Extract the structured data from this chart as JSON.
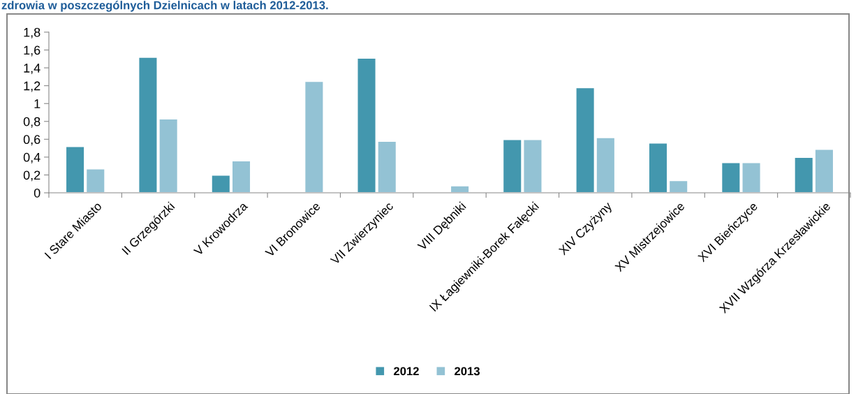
{
  "chart_data": {
    "type": "bar",
    "title": "zdrowia w poszczególnych Dzielnicach w latach 2012-2013.",
    "categories": [
      "I Stare Miasto",
      "II Grzegórzki",
      "V Krowodrza",
      "VI Bronowice",
      "VII Zwierzyniec",
      "VIII Dębniki",
      "IX Łagiewniki-Borek Fałęcki",
      "XIV Czyżyny",
      "XV Mistrzejowice",
      "XVI Bieńczyce",
      "XVII Wzgórza Krzesławickie"
    ],
    "series": [
      {
        "name": "2012",
        "color": "#4397ae",
        "values": [
          0.52,
          1.52,
          0.2,
          null,
          1.51,
          null,
          0.6,
          1.18,
          0.56,
          0.34,
          0.4
        ]
      },
      {
        "name": "2013",
        "color": "#93c2d4",
        "values": [
          0.27,
          0.83,
          0.36,
          1.25,
          0.58,
          0.08,
          0.6,
          0.62,
          0.14,
          0.34,
          0.49
        ]
      }
    ],
    "ylim": [
      0,
      1.8
    ],
    "yticks": [
      0,
      {
        "value": 0.2,
        "label": "0,2"
      },
      {
        "value": 0.4,
        "label": "0,4"
      },
      {
        "value": 0.6,
        "label": "0,6"
      },
      {
        "value": 0.8,
        "label": "0,8"
      },
      1,
      {
        "value": 1.2,
        "label": "1,2"
      },
      {
        "value": 1.4,
        "label": "1,4"
      },
      {
        "value": 1.6,
        "label": "1,6"
      },
      {
        "value": 1.8,
        "label": "1,8"
      }
    ],
    "grid": false,
    "legend": "bottom"
  }
}
